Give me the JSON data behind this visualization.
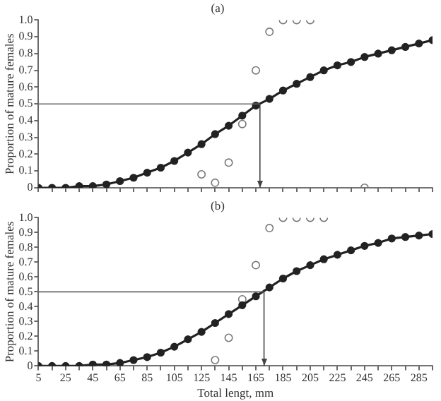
{
  "chart_data": [
    {
      "type": "line",
      "title": "(a)",
      "ylabel": "Proportion of mature females",
      "x": [
        5,
        15,
        25,
        35,
        45,
        55,
        65,
        75,
        85,
        95,
        105,
        115,
        125,
        135,
        145,
        155,
        165,
        175,
        185,
        195,
        205,
        215,
        225,
        235,
        245,
        255,
        265,
        275,
        285,
        295
      ],
      "series": [
        {
          "color": "#222222",
          "marker": "circle",
          "line_style": "solid",
          "values": [
            0,
            0,
            0,
            0.01,
            0.01,
            0.02,
            0.04,
            0.06,
            0.09,
            0.12,
            0.16,
            0.21,
            0.26,
            0.32,
            0.37,
            0.43,
            0.49,
            0.53,
            0.58,
            0.62,
            0.66,
            0.7,
            0.73,
            0.75,
            0.78,
            0.8,
            0.82,
            0.84,
            0.86,
            0.88
          ]
        },
        {
          "type": "scatter",
          "color": "#777777",
          "marker": "circle",
          "x": [
            125,
            135,
            145,
            155,
            165,
            175,
            185,
            195,
            205,
            245
          ],
          "values": [
            0.08,
            0.03,
            0.15,
            0.38,
            0.7,
            0.93,
            1,
            1,
            1,
            0
          ]
        }
      ],
      "xlim": [
        5,
        295
      ],
      "xticks": [
        5,
        {
          "value": 15,
          "label": null
        },
        25,
        {
          "value": 35,
          "label": null
        },
        45,
        {
          "value": 55,
          "label": null
        },
        65,
        {
          "value": 75,
          "label": null
        },
        85,
        {
          "value": 95,
          "label": null
        },
        105,
        {
          "value": 115,
          "label": null
        },
        125,
        {
          "value": 135,
          "label": null
        },
        145,
        {
          "value": 155,
          "label": null
        },
        165,
        {
          "value": 175,
          "label": null
        },
        185,
        {
          "value": 195,
          "label": null
        },
        205,
        {
          "value": 215,
          "label": null
        },
        225,
        {
          "value": 235,
          "label": null
        },
        245,
        {
          "value": 255,
          "label": null
        },
        265,
        {
          "value": 275,
          "label": null
        },
        285,
        {
          "value": 295,
          "label": null
        }
      ],
      "ylim": [
        0,
        1
      ],
      "yticks": [
        0,
        0.1,
        0.2,
        0.3,
        0.4,
        0.5,
        0.6,
        0.7,
        0.8,
        0.9,
        {
          "value": 1,
          "label": "1.0"
        }
      ],
      "ref_lines": [
        {
          "axis": "y",
          "value": 0.5,
          "color": "#666666"
        },
        {
          "axis": "x",
          "value": 168,
          "color": "#444444"
        }
      ],
      "grid": false,
      "legend": false,
      "tick_labels": "y"
    },
    {
      "type": "line",
      "title": "(b)",
      "xlabel": "Total lengt, mm",
      "ylabel": "Proportion of mature females",
      "x": [
        5,
        15,
        25,
        35,
        45,
        55,
        65,
        75,
        85,
        95,
        105,
        115,
        125,
        135,
        145,
        155,
        165,
        175,
        185,
        195,
        205,
        215,
        225,
        235,
        245,
        255,
        265,
        275,
        285,
        295
      ],
      "series": [
        {
          "color": "#222222",
          "marker": "circle",
          "line_style": "solid",
          "values": [
            0,
            0,
            0,
            0,
            0.01,
            0.01,
            0.02,
            0.04,
            0.06,
            0.09,
            0.13,
            0.18,
            0.23,
            0.29,
            0.35,
            0.41,
            0.47,
            0.53,
            0.59,
            0.64,
            0.68,
            0.72,
            0.75,
            0.78,
            0.81,
            0.83,
            0.86,
            0.87,
            0.88,
            0.89
          ]
        },
        {
          "type": "scatter",
          "color": "#777777",
          "marker": "circle",
          "x": [
            135,
            145,
            155,
            165,
            175,
            185,
            195,
            205,
            215
          ],
          "values": [
            0.04,
            0.19,
            0.45,
            0.68,
            0.93,
            1,
            1,
            1,
            1
          ]
        }
      ],
      "xlim": [
        5,
        295
      ],
      "xticks": [
        5,
        {
          "value": 15,
          "label": null
        },
        25,
        {
          "value": 35,
          "label": null
        },
        45,
        {
          "value": 55,
          "label": null
        },
        65,
        {
          "value": 75,
          "label": null
        },
        85,
        {
          "value": 95,
          "label": null
        },
        105,
        {
          "value": 115,
          "label": null
        },
        125,
        {
          "value": 135,
          "label": null
        },
        145,
        {
          "value": 155,
          "label": null
        },
        165,
        {
          "value": 175,
          "label": null
        },
        185,
        {
          "value": 195,
          "label": null
        },
        205,
        {
          "value": 215,
          "label": null
        },
        225,
        {
          "value": 235,
          "label": null
        },
        245,
        {
          "value": 255,
          "label": null
        },
        265,
        {
          "value": 275,
          "label": null
        },
        285,
        {
          "value": 295,
          "label": null
        }
      ],
      "ylim": [
        0,
        1
      ],
      "yticks": [
        0,
        0.1,
        0.2,
        0.3,
        0.4,
        0.5,
        0.6,
        0.7,
        0.8,
        0.9,
        {
          "value": 1,
          "label": "1.0"
        }
      ],
      "ref_lines": [
        {
          "axis": "y",
          "value": 0.5,
          "color": "#666666"
        },
        {
          "axis": "x",
          "value": 171,
          "color": "#444444"
        }
      ],
      "grid": false,
      "legend": false
    }
  ]
}
